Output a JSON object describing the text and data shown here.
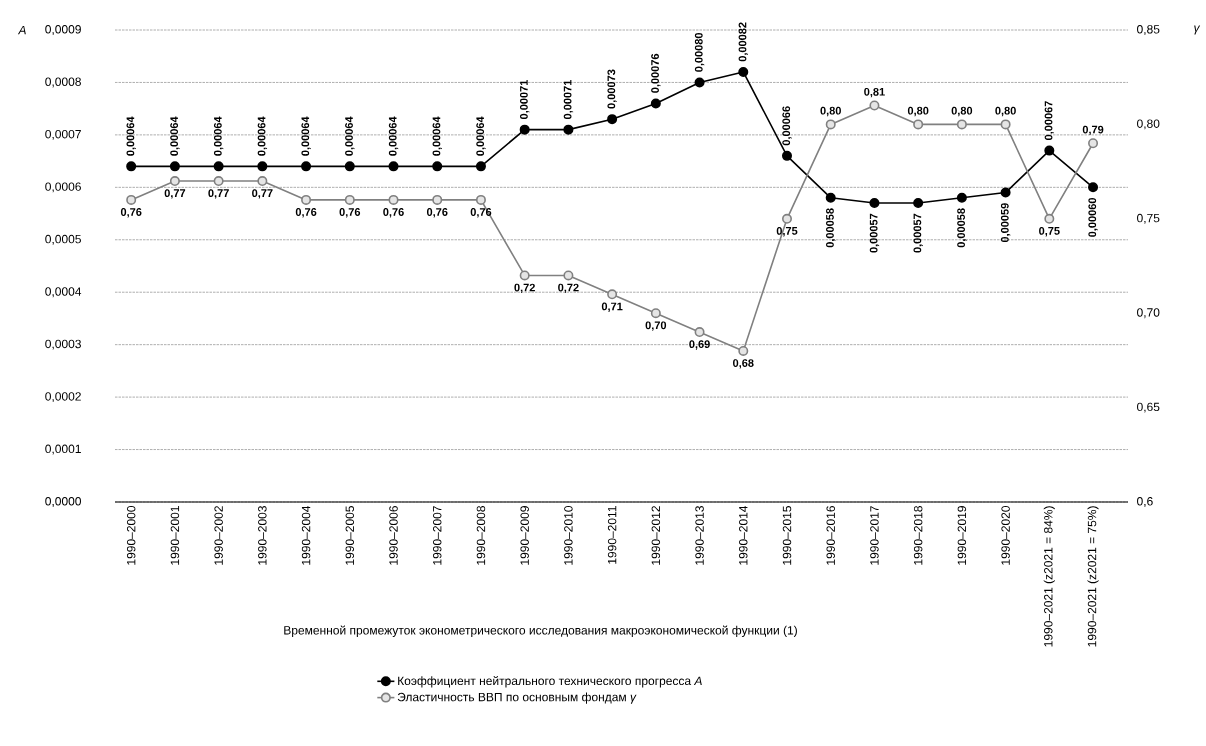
{
  "chart_data": {
    "type": "line",
    "xlabel": "Временной промежуток эконометрического исследования макроэкономической функции (1)",
    "ylabel": "A",
    "y2label": "γ",
    "categories": [
      "1990–2000",
      "1990–2001",
      "1990–2002",
      "1990–2003",
      "1990–2004",
      "1990–2005",
      "1990–2006",
      "1990–2007",
      "1990–2008",
      "1990–2009",
      "1990–2010",
      "1990–2011",
      "1990–2012",
      "1990–2013",
      "1990–2014",
      "1990–2015",
      "1990–2016",
      "1990–2017",
      "1990–2018",
      "1990–2019",
      "1990–2020",
      "1990–2021 (z2021 = 84%)",
      "1990–2021 (z2021 = 75%)"
    ],
    "series": [
      {
        "name": "Коэффициент нейтрального технического прогресса *A*",
        "color": "#000000",
        "values": [
          0.00064,
          0.00064,
          0.00064,
          0.00064,
          0.00064,
          0.00064,
          0.00064,
          0.00064,
          0.00064,
          0.00071,
          0.00071,
          0.00073,
          0.00076,
          0.0008,
          0.00082,
          0.00066,
          0.00058,
          0.00057,
          0.00057,
          0.00058,
          0.00059,
          0.00067,
          0.0006
        ],
        "value_labels": [
          "0,00064",
          "0,00064",
          "0,00064",
          "0,00064",
          "0,00064",
          "0,00064",
          "0,00064",
          "0,00064",
          "0,00064",
          "0,00071",
          "0,00071",
          "0,00073",
          "0,00076",
          "0,00080",
          "0,00082",
          "0,00066",
          "0,00058",
          "0,00057",
          "0,00057",
          "0,00058",
          "0,00059",
          "0,00067",
          "0,00060"
        ]
      },
      {
        "name": "Эластичность ВВП по основным фондам *γ*",
        "color": "#808080",
        "axis": "y2",
        "values": [
          0.76,
          0.77,
          0.77,
          0.77,
          0.76,
          0.76,
          0.76,
          0.76,
          0.76,
          0.72,
          0.72,
          0.71,
          0.7,
          0.69,
          0.68,
          0.75,
          0.8,
          0.81,
          0.8,
          0.8,
          0.8,
          0.75,
          0.79
        ],
        "value_labels": [
          "0,76",
          "0,77",
          "0,77",
          "0,77",
          "0,76",
          "0,76",
          "0,76",
          "0,76",
          "0,76",
          "0,72",
          "0,72",
          "0,71",
          "0,70",
          "0,69",
          "0,68",
          "0,75",
          "0,80",
          "0,81",
          "0,80",
          "0,80",
          "0,80",
          "0,75",
          "0,79"
        ]
      }
    ],
    "ylim": [
      0,
      0.0009
    ],
    "yticks": [
      {
        "value": 0,
        "label": "0,0000"
      },
      {
        "value": 0.0001,
        "label": "0,0001"
      },
      {
        "value": 0.0002,
        "label": "0,0002"
      },
      {
        "value": 0.0003,
        "label": "0,0003"
      },
      {
        "value": 0.0004,
        "label": "0,0004"
      },
      {
        "value": 0.0005,
        "label": "0,0005"
      },
      {
        "value": 0.0006,
        "label": "0,0006"
      },
      {
        "value": 0.0007,
        "label": "0,0007"
      },
      {
        "value": 0.0008,
        "label": "0,0008"
      },
      {
        "value": 0.0009,
        "label": "0,0009"
      }
    ],
    "y2lim": [
      0.6,
      0.85
    ],
    "y2ticks": [
      {
        "value": 0.6,
        "label": "0,6"
      },
      {
        "value": 0.65,
        "label": "0,65"
      },
      {
        "value": 0.7,
        "label": "0,70"
      },
      {
        "value": 0.75,
        "label": "0,75"
      },
      {
        "value": 0.8,
        "label": "0,80"
      },
      {
        "value": 0.85,
        "label": "0,85"
      }
    ],
    "grid": "y",
    "legend": "bottom",
    "marker": "circle",
    "line_style": "solid"
  }
}
